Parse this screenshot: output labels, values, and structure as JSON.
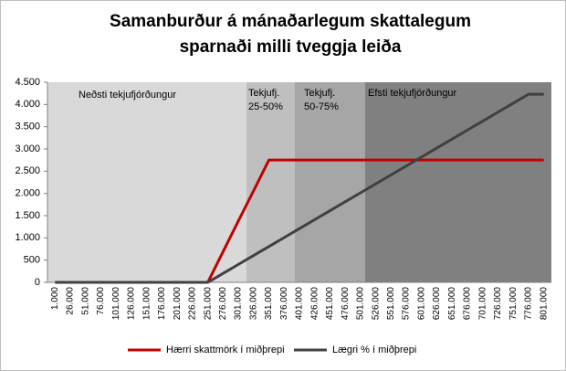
{
  "chart_data": {
    "type": "line",
    "title": [
      "Samanburður á mánaðarlegum skattalegum",
      "sparnaði milli tveggja leiða"
    ],
    "annotations": [
      "Neðsti tekjufjórðungur",
      "Tekjufj.",
      "25-50%",
      "Tekjufj.",
      "50-75%",
      "Efsti tekjufjórðungur"
    ],
    "categories": [
      "1.000",
      "26.000",
      "51.000",
      "76.000",
      "101.000",
      "126.000",
      "151.000",
      "176.000",
      "201.000",
      "226.000",
      "251.000",
      "276.000",
      "301.000",
      "326.000",
      "351.000",
      "376.000",
      "401.000",
      "426.000",
      "451.000",
      "476.000",
      "501.000",
      "526.000",
      "551.000",
      "576.000",
      "601.000",
      "626.000",
      "651.000",
      "676.000",
      "701.000",
      "726.000",
      "751.000",
      "776.000",
      "801.000"
    ],
    "series": [
      {
        "name": "Hærri skattmörk í miðþrepi",
        "color": "#c00000",
        "values": [
          0,
          0,
          0,
          0,
          0,
          0,
          0,
          0,
          0,
          0,
          0,
          690,
          1380,
          2060,
          2750,
          2750,
          2750,
          2750,
          2750,
          2750,
          2750,
          2750,
          2750,
          2750,
          2750,
          2750,
          2750,
          2750,
          2750,
          2750,
          2750,
          2750,
          2750
        ]
      },
      {
        "name": "Lægri % í miðþrepi",
        "color": "#404040",
        "values": [
          0,
          0,
          0,
          0,
          0,
          0,
          0,
          0,
          0,
          0,
          0,
          201,
          403,
          604,
          806,
          1007,
          1209,
          1410,
          1611,
          1813,
          2014,
          2216,
          2417,
          2619,
          2820,
          3021,
          3223,
          3424,
          3626,
          3827,
          4029,
          4230,
          4230
        ]
      }
    ],
    "ylim": [
      0,
      4500
    ],
    "yticks": [
      0,
      500,
      {
        "value": 1000,
        "label": "1.000"
      },
      {
        "value": 1500,
        "label": "1.500"
      },
      {
        "value": 2000,
        "label": "2.000"
      },
      {
        "value": 2500,
        "label": "2.500"
      },
      {
        "value": 3000,
        "label": "3.000"
      },
      {
        "value": 3500,
        "label": "3.500"
      },
      {
        "value": 4000,
        "label": "4.000"
      },
      {
        "value": 4500,
        "label": "4.500"
      }
    ],
    "legend": "bottom"
  }
}
